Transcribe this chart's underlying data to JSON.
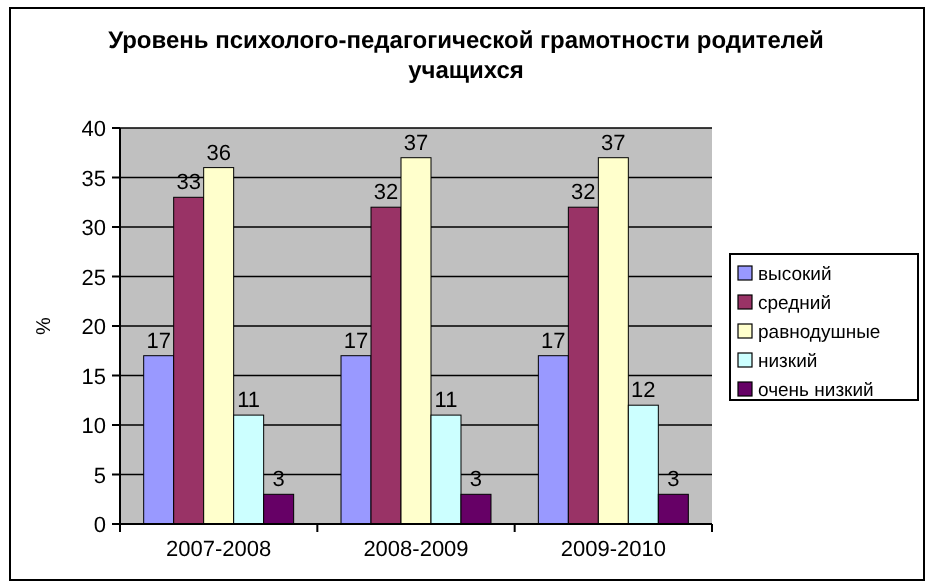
{
  "chart_data": {
    "type": "bar",
    "title": "Уровень психолого-педагогической грамотности родителей учащихся",
    "ylabel": "%",
    "categories": [
      "2007-2008",
      "2008-2009",
      "2009-2010"
    ],
    "series": [
      {
        "name": "высокий",
        "color": "#9999ff",
        "values": [
          17,
          17,
          17
        ]
      },
      {
        "name": "средний",
        "color": "#993366",
        "values": [
          33,
          32,
          32
        ]
      },
      {
        "name": "равнодушные",
        "color": "#ffffcc",
        "values": [
          36,
          37,
          37
        ]
      },
      {
        "name": "низкий",
        "color": "#ccffff",
        "values": [
          11,
          11,
          12
        ]
      },
      {
        "name": "очень низкий",
        "color": "#660066",
        "values": [
          3,
          3,
          3
        ]
      }
    ],
    "ylim": [
      0,
      40
    ],
    "yticks": [
      0,
      5,
      10,
      15,
      20,
      25,
      30,
      35,
      40
    ],
    "grid": "y",
    "legend": "right",
    "data_labels": true
  }
}
